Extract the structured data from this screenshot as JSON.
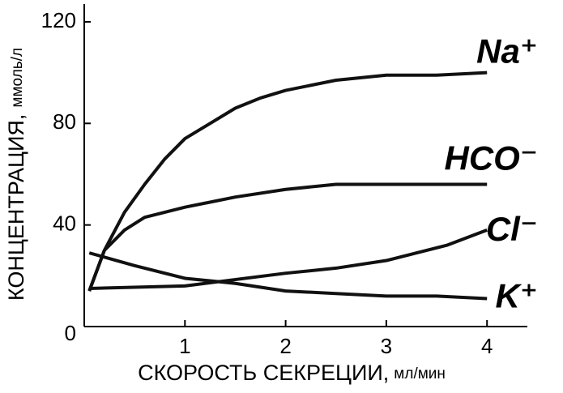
{
  "chart_data": {
    "type": "line",
    "x_label": "СКОРОСТЬ   СЕКРЕЦИИ,",
    "x_label_unit": "мл/мин",
    "y_label": "КОНЦЕНТРАЦИЯ,",
    "y_label_unit": "ммоль/л",
    "xlim": [
      0,
      4.4
    ],
    "ylim": [
      0,
      127
    ],
    "xticks": [
      1,
      2,
      3,
      4
    ],
    "yticks": [
      0,
      40,
      80,
      120
    ],
    "series": [
      {
        "name": "Na⁺",
        "color": "#111111",
        "x": [
          0.05,
          0.2,
          0.4,
          0.6,
          0.8,
          1.0,
          1.25,
          1.5,
          1.75,
          2.0,
          2.5,
          3.0,
          3.5,
          4.0
        ],
        "values": [
          14,
          30,
          45,
          56,
          66,
          74,
          80,
          86,
          90,
          93,
          97,
          99,
          99,
          100
        ]
      },
      {
        "name": "HCO⁻",
        "color": "#111111",
        "x": [
          0.05,
          0.2,
          0.4,
          0.6,
          1.0,
          1.5,
          2.0,
          2.5,
          3.0,
          4.0
        ],
        "values": [
          14,
          30,
          38,
          43,
          47,
          51,
          54,
          56,
          56,
          56
        ]
      },
      {
        "name": "Cl⁻",
        "color": "#111111",
        "x": [
          0.05,
          1.0,
          2.0,
          2.5,
          3.0,
          3.6,
          4.0
        ],
        "values": [
          15,
          16,
          21,
          23,
          26,
          32,
          38
        ]
      },
      {
        "name": "K⁺",
        "color": "#111111",
        "x": [
          0.05,
          0.5,
          1.0,
          1.5,
          2.0,
          2.5,
          3.0,
          3.5,
          4.0
        ],
        "values": [
          29,
          24,
          19,
          17,
          14,
          13,
          12,
          12,
          11
        ]
      }
    ]
  }
}
